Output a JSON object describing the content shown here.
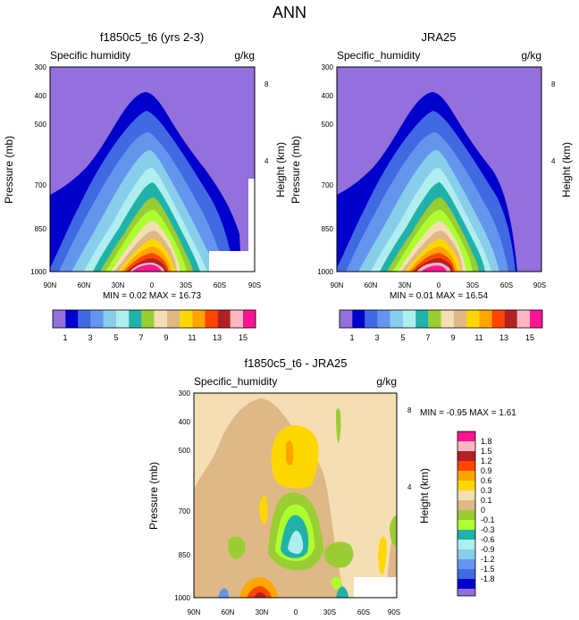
{
  "figure": {
    "title": "ANN",
    "common": {
      "left_label": "Specific humidity",
      "left_label_alt": "Specific_humidity",
      "units": "g/kg",
      "ylabel": "Pressure (mb)",
      "ylabel_right": "Height (km)",
      "x_ticks": [
        "90N",
        "60N",
        "30N",
        "0",
        "30S",
        "60S",
        "90S"
      ],
      "y_ticks": [
        "300",
        "400",
        "500",
        "700",
        "850",
        "1000"
      ],
      "height_ticks": [
        "8",
        "4"
      ]
    }
  },
  "colors": {
    "abs": [
      "#9370db",
      "#0000cd",
      "#4169e1",
      "#6495ed",
      "#87ceeb",
      "#afeeee",
      "#20b2aa",
      "#9acd32",
      "#adff2f",
      "#f5deb3",
      "#deb887",
      "#ffd700",
      "#ffa500",
      "#ff4500",
      "#b22222",
      "#ffb6c1",
      "#ff1493"
    ],
    "diff": [
      "#9370db",
      "#0000cd",
      "#4169e1",
      "#6495ed",
      "#87ceeb",
      "#afeeee",
      "#20b2aa",
      "#adff2f",
      "#9acd32",
      "#deb887",
      "#f5deb3",
      "#ffd700",
      "#ffa500",
      "#ff4500",
      "#b22222",
      "#ffb6c1",
      "#ff1493"
    ]
  },
  "chart_data": [
    {
      "type": "contour",
      "title": "f1850c5_t6 (yrs 2-3)",
      "left_label": "Specific humidity",
      "units": "g/kg",
      "xlabel": "",
      "ylabel": "Pressure (mb)",
      "ylabel_right": "Height (km)",
      "x_range": [
        90,
        -90
      ],
      "y_range_mb": [
        1000,
        300
      ],
      "stats_text": "MIN =  0.02  MAX =  16.73",
      "min": 0.02,
      "max": 16.73,
      "levels_labeled": [
        "1",
        "3",
        "5",
        "7",
        "9",
        "11",
        "13",
        "15"
      ],
      "levels": [
        0.5,
        1,
        2,
        3,
        4,
        5,
        6,
        7,
        8,
        9,
        10,
        11,
        12,
        13,
        14,
        15
      ]
    },
    {
      "type": "contour",
      "title": "JRA25",
      "left_label": "Specific_humidity",
      "units": "g/kg",
      "xlabel": "",
      "ylabel": "Pressure (mb)",
      "ylabel_right": "Height (km)",
      "x_range": [
        90,
        -90
      ],
      "y_range_mb": [
        1000,
        300
      ],
      "stats_text": "MIN =  0.01  MAX =  16.54",
      "min": 0.01,
      "max": 16.54,
      "levels_labeled": [
        "1",
        "3",
        "5",
        "7",
        "9",
        "11",
        "13",
        "15"
      ],
      "levels": [
        0.5,
        1,
        2,
        3,
        4,
        5,
        6,
        7,
        8,
        9,
        10,
        11,
        12,
        13,
        14,
        15
      ]
    },
    {
      "type": "contour",
      "title": "f1850c5_t6 - JRA25",
      "left_label": "Specific_humidity",
      "units": "g/kg",
      "xlabel": "",
      "ylabel": "Pressure (mb)",
      "ylabel_right": "Height (km)",
      "x_range": [
        90,
        -90
      ],
      "y_range_mb": [
        1000,
        300
      ],
      "stats_text": "MIN = -0.95  MAX =  1.61",
      "min": -0.95,
      "max": 1.61,
      "levels": [
        1.8,
        1.5,
        1.2,
        0.9,
        0.6,
        0.3,
        0.1,
        0,
        -0.1,
        -0.3,
        -0.6,
        -0.9,
        -1.2,
        -1.5,
        -1.8
      ],
      "level_labels": [
        "1.8",
        "1.5",
        "1.2",
        "0.9",
        "0.6",
        "0.3",
        "0.1",
        "0",
        "-0.1",
        "-0.3",
        "-0.6",
        "-0.9",
        "-1.2",
        "-1.5",
        "-1.8"
      ]
    }
  ]
}
